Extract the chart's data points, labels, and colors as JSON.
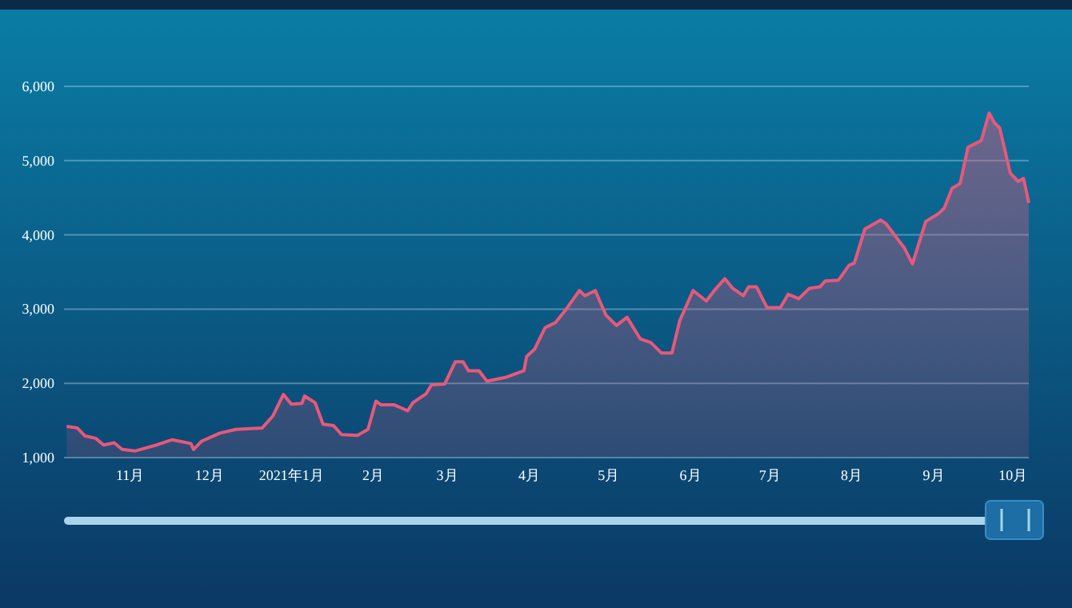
{
  "chart_data": {
    "type": "area",
    "color": "#e8587a",
    "grid": "y",
    "x": [
      "2020-10-08",
      "2020-10-12",
      "2020-10-15",
      "2020-10-19",
      "2020-10-22",
      "2020-10-26",
      "2020-10-29",
      "2020-11-03",
      "2020-11-11",
      "2020-11-17",
      "2020-11-24",
      "2020-11-25",
      "2020-11-28",
      "2020-12-05",
      "2020-12-11",
      "2020-12-21",
      "2020-12-25",
      "2020-12-29",
      "2021-01-01",
      "2021-01-05",
      "2021-01-06",
      "2021-01-10",
      "2021-01-13",
      "2021-01-17",
      "2021-01-20",
      "2021-01-26",
      "2021-01-30",
      "2021-02-02",
      "2021-02-04",
      "2021-02-09",
      "2021-02-14",
      "2021-02-16",
      "2021-02-21",
      "2021-02-23",
      "2021-02-28",
      "2021-03-04",
      "2021-03-07",
      "2021-03-09",
      "2021-03-13",
      "2021-03-16",
      "2021-03-23",
      "2021-03-30",
      "2021-03-31",
      "2021-04-03",
      "2021-04-07",
      "2021-04-11",
      "2021-04-15",
      "2021-04-20",
      "2021-04-22",
      "2021-04-26",
      "2021-04-30",
      "2021-05-04",
      "2021-05-08",
      "2021-05-13",
      "2021-05-17",
      "2021-05-21",
      "2021-05-25",
      "2021-05-28",
      "2021-06-02",
      "2021-06-07",
      "2021-06-10",
      "2021-06-14",
      "2021-06-17",
      "2021-06-21",
      "2021-06-23",
      "2021-06-26",
      "2021-06-30",
      "2021-07-05",
      "2021-07-08",
      "2021-07-12",
      "2021-07-16",
      "2021-07-20",
      "2021-07-22",
      "2021-07-27",
      "2021-07-31",
      "2021-08-02",
      "2021-08-06",
      "2021-08-12",
      "2021-08-14",
      "2021-08-21",
      "2021-08-24",
      "2021-08-29",
      "2021-09-03",
      "2021-09-05",
      "2021-09-08",
      "2021-09-11",
      "2021-09-14",
      "2021-09-19",
      "2021-09-22",
      "2021-09-24",
      "2021-09-26",
      "2021-09-30",
      "2021-10-03",
      "2021-10-05",
      "2021-10-07"
    ],
    "values": [
      1420,
      1400,
      1290,
      1260,
      1170,
      1200,
      1110,
      1090,
      1170,
      1240,
      1190,
      1110,
      1220,
      1330,
      1380,
      1400,
      1560,
      1850,
      1720,
      1730,
      1830,
      1740,
      1450,
      1430,
      1310,
      1300,
      1380,
      1760,
      1710,
      1710,
      1630,
      1740,
      1860,
      1980,
      1990,
      2290,
      2290,
      2170,
      2170,
      2030,
      2080,
      2170,
      2360,
      2460,
      2750,
      2820,
      3000,
      3250,
      3180,
      3250,
      2920,
      2780,
      2890,
      2600,
      2550,
      2410,
      2410,
      2850,
      3250,
      3110,
      3250,
      3410,
      3280,
      3180,
      3300,
      3300,
      3020,
      3020,
      3200,
      3140,
      3280,
      3300,
      3380,
      3390,
      3590,
      3620,
      4080,
      4200,
      4150,
      3820,
      3610,
      4180,
      4290,
      4360,
      4630,
      4690,
      5180,
      5270,
      5640,
      5510,
      5440,
      4830,
      4720,
      4760,
      4430
    ],
    "xlim": [
      "2020-10-07",
      "2021-10-07"
    ],
    "xticks": [
      {
        "value": "2020-11-01",
        "label": "11月"
      },
      {
        "value": "2020-12-01",
        "label": "12月"
      },
      {
        "value": "2021-01-01",
        "label": "2021年1月"
      },
      {
        "value": "2021-02-01",
        "label": "2月"
      },
      {
        "value": "2021-03-01",
        "label": "3月"
      },
      {
        "value": "2021-04-01",
        "label": "4月"
      },
      {
        "value": "2021-05-01",
        "label": "5月"
      },
      {
        "value": "2021-06-01",
        "label": "6月"
      },
      {
        "value": "2021-07-01",
        "label": "7月"
      },
      {
        "value": "2021-08-01",
        "label": "8月"
      },
      {
        "value": "2021-09-01",
        "label": "9月"
      },
      {
        "value": "2021-10-01",
        "label": "10月"
      }
    ],
    "ylim": [
      1000,
      6000
    ],
    "yticks": [
      {
        "value": 1000,
        "label": "1,000"
      },
      {
        "value": 2000,
        "label": "2,000"
      },
      {
        "value": 3000,
        "label": "3,000"
      },
      {
        "value": 4000,
        "label": "4,000"
      },
      {
        "value": 5000,
        "label": "5,000"
      },
      {
        "value": 6000,
        "label": "6,000"
      }
    ]
  }
}
